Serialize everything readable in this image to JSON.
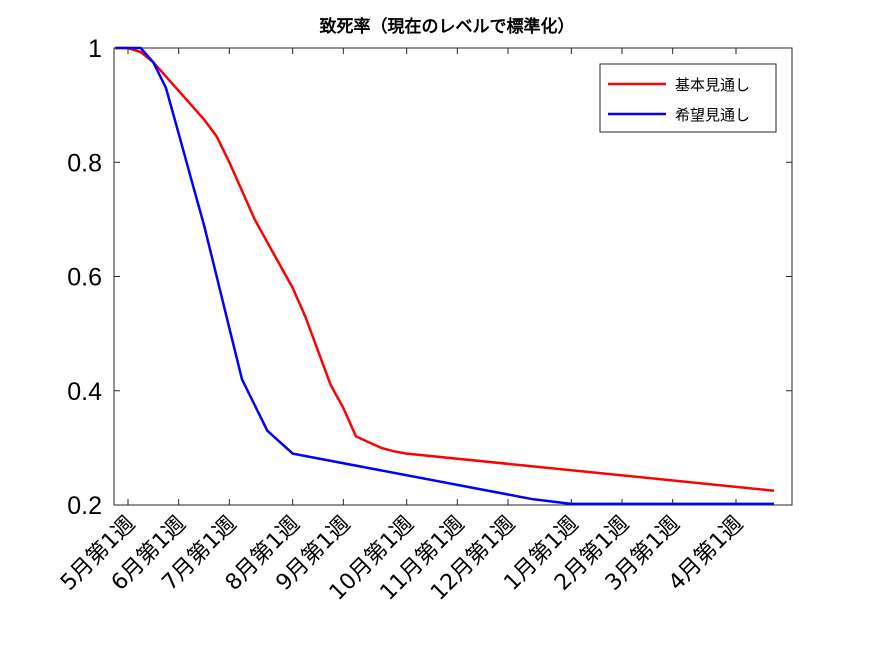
{
  "chart_data": {
    "type": "line",
    "title": "致死率（現在のレベルで標準化）",
    "xlabel": "",
    "ylabel": "",
    "ylim": [
      0.2,
      1
    ],
    "yticks": [
      "0.2",
      "0.4",
      "0.6",
      "0.8",
      "1"
    ],
    "xlim": [
      0,
      51
    ],
    "x_ticks": [
      {
        "x": 0,
        "label": "5月第1週"
      },
      {
        "x": 4,
        "label": "6月第1週"
      },
      {
        "x": 8,
        "label": "7月第1週"
      },
      {
        "x": 13,
        "label": "8月第1週"
      },
      {
        "x": 17,
        "label": "9月第1週"
      },
      {
        "x": 22,
        "label": "10月第1週"
      },
      {
        "x": 26,
        "label": "11月第1週"
      },
      {
        "x": 30,
        "label": "12月第1週"
      },
      {
        "x": 35,
        "label": "1月第1週"
      },
      {
        "x": 39,
        "label": "2月第1週"
      },
      {
        "x": 43,
        "label": "3月第1週"
      },
      {
        "x": 48,
        "label": "4月第1週"
      }
    ],
    "grid": false,
    "legend_position": "top-right",
    "series": [
      {
        "name": "基本見通し",
        "color": "#ff0000",
        "x": [
          -1,
          0,
          1,
          2,
          3,
          4,
          5,
          6,
          7,
          8,
          9,
          10,
          11,
          12,
          13,
          14,
          15,
          16,
          17,
          18,
          19,
          20,
          21,
          22,
          51
        ],
        "y": [
          1.0,
          1.0,
          0.993,
          0.975,
          0.95,
          0.925,
          0.9,
          0.875,
          0.845,
          0.8,
          0.75,
          0.7,
          0.66,
          0.62,
          0.58,
          0.53,
          0.47,
          0.41,
          0.37,
          0.32,
          0.31,
          0.3,
          0.294,
          0.29,
          0.225
        ]
      },
      {
        "name": "希望見通し",
        "color": "#0000ff",
        "x": [
          -1,
          1,
          2,
          3,
          4,
          5,
          6,
          7,
          8,
          9,
          11,
          13,
          32,
          35,
          51
        ],
        "y": [
          1.0,
          1.0,
          0.975,
          0.93,
          0.85,
          0.77,
          0.69,
          0.6,
          0.51,
          0.42,
          0.33,
          0.29,
          0.21,
          0.202,
          0.202
        ]
      }
    ]
  }
}
